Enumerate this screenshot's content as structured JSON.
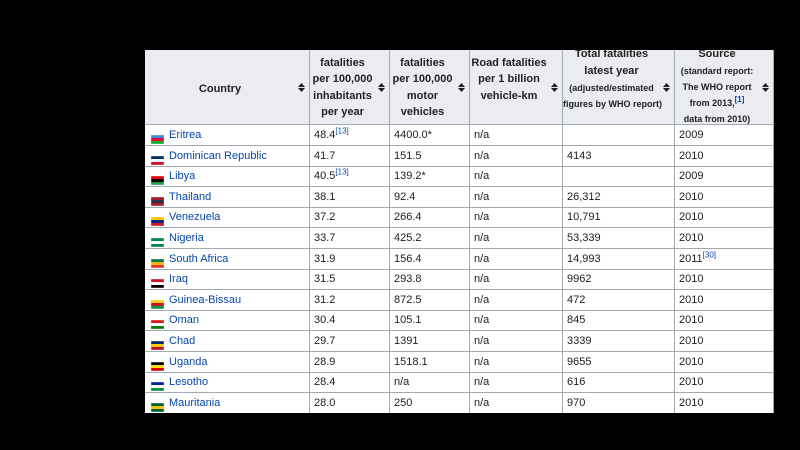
{
  "table": {
    "headers": [
      {
        "lines": [
          "Country"
        ]
      },
      {
        "lines": [
          "fatalities",
          "per 100,000",
          "inhabitants",
          "per year"
        ]
      },
      {
        "lines": [
          "fatalities",
          "per 100,000",
          "motor",
          "vehicles"
        ]
      },
      {
        "lines": [
          "Road fatalities",
          "per 1 billion",
          "vehicle-km"
        ]
      },
      {
        "lines": [
          "Total fatalities",
          "latest year",
          "(adjusted/estimated",
          "figures by WHO report)"
        ]
      },
      {
        "lines": [
          "Source",
          "(standard report:",
          "The WHO report",
          "from 2013,",
          "data from 2010)"
        ],
        "ref": "[1]"
      }
    ],
    "rows": [
      [
        "Eritrea",
        {
          "text": "48.4",
          "ref": "[13]"
        },
        "4400.0*",
        "n/a",
        "",
        "2009"
      ],
      [
        "Dominican Republic",
        "41.7",
        "151.5",
        "n/a",
        "4143",
        "2010"
      ],
      [
        "Libya",
        {
          "text": "40.5",
          "ref": "[13]"
        },
        "139.2*",
        "n/a",
        "",
        "2009"
      ],
      [
        "Thailand",
        "38.1",
        "92.4",
        "n/a",
        "26,312",
        "2010"
      ],
      [
        "Venezuela",
        "37.2",
        "266.4",
        "n/a",
        "10,791",
        "2010"
      ],
      [
        "Nigeria",
        "33.7",
        "425.2",
        "n/a",
        "53,339",
        "2010"
      ],
      [
        "South Africa",
        "31.9",
        "156.4",
        "n/a",
        "14,993",
        {
          "text": "2011",
          "ref": "[30]"
        }
      ],
      [
        "Iraq",
        "31.5",
        "293.8",
        "n/a",
        "9962",
        "2010"
      ],
      [
        "Guinea-Bissau",
        "31.2",
        "872.5",
        "n/a",
        "472",
        "2010"
      ],
      [
        "Oman",
        "30.4",
        "105.1",
        "n/a",
        "845",
        "2010"
      ],
      [
        "Chad",
        "29.7",
        "1391",
        "n/a",
        "3339",
        "2010"
      ],
      [
        "Uganda",
        "28.9",
        "1518.1",
        "n/a",
        "9655",
        "2010"
      ],
      [
        "Lesotho",
        "28.4",
        "n/a",
        "n/a",
        "616",
        "2010"
      ],
      [
        "Mauritania",
        "28.0",
        "250",
        "n/a",
        "970",
        "2010"
      ]
    ]
  }
}
